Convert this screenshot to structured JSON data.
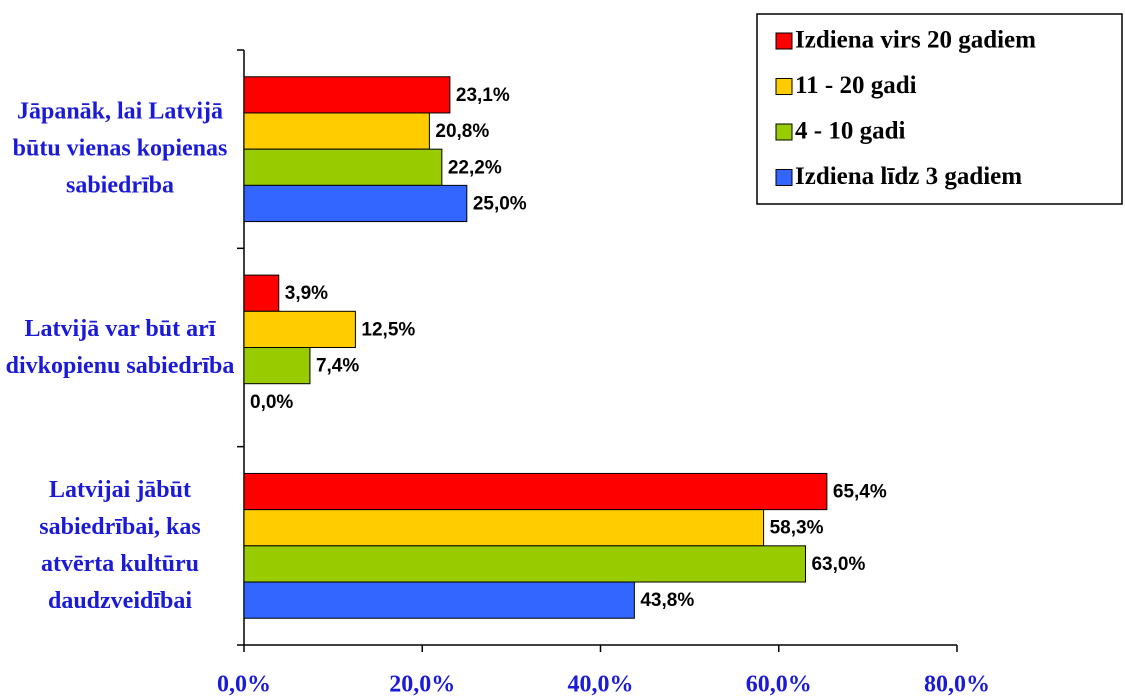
{
  "chart_data": {
    "type": "hbar",
    "categories": [
      "Jāpanāk, lai Latvijā būtu vienas kopienas sabiedrība",
      "Latvijā var būt arī divkopienu sabiedrība",
      "Latvijai jābūt sabiedrībai, kas atvērta kultūru daudzveidībai"
    ],
    "series": [
      {
        "name": "Izdiena virs 20 gadiem",
        "color": "#ff0000",
        "values": [
          23.1,
          3.9,
          65.4
        ],
        "value_labels": [
          "23,1%",
          "3,9%",
          "65,4%"
        ]
      },
      {
        "name": "11 - 20 gadi",
        "color": "#ffcc00",
        "values": [
          20.8,
          12.5,
          58.3
        ],
        "value_labels": [
          "20,8%",
          "12,5%",
          "58,3%"
        ]
      },
      {
        "name": "4 - 10 gadi",
        "color": "#99cc00",
        "values": [
          22.2,
          7.4,
          63.0
        ],
        "value_labels": [
          "22,2%",
          "7,4%",
          "63,0%"
        ]
      },
      {
        "name": "Izdiena līdz 3 gadiem",
        "color": "#3366ff",
        "values": [
          25.0,
          0.0,
          43.8
        ],
        "value_labels": [
          "25,0%",
          "0,0%",
          "43,8%"
        ]
      }
    ],
    "xlim": [
      0,
      80
    ],
    "xticks": [
      {
        "value": 0,
        "label": "0,0%"
      },
      {
        "value": 20,
        "label": "20,0%"
      },
      {
        "value": 40,
        "label": "40,0%"
      },
      {
        "value": 60,
        "label": "60,0%"
      },
      {
        "value": 80,
        "label": "80,0%"
      }
    ],
    "legend": "top-right"
  }
}
